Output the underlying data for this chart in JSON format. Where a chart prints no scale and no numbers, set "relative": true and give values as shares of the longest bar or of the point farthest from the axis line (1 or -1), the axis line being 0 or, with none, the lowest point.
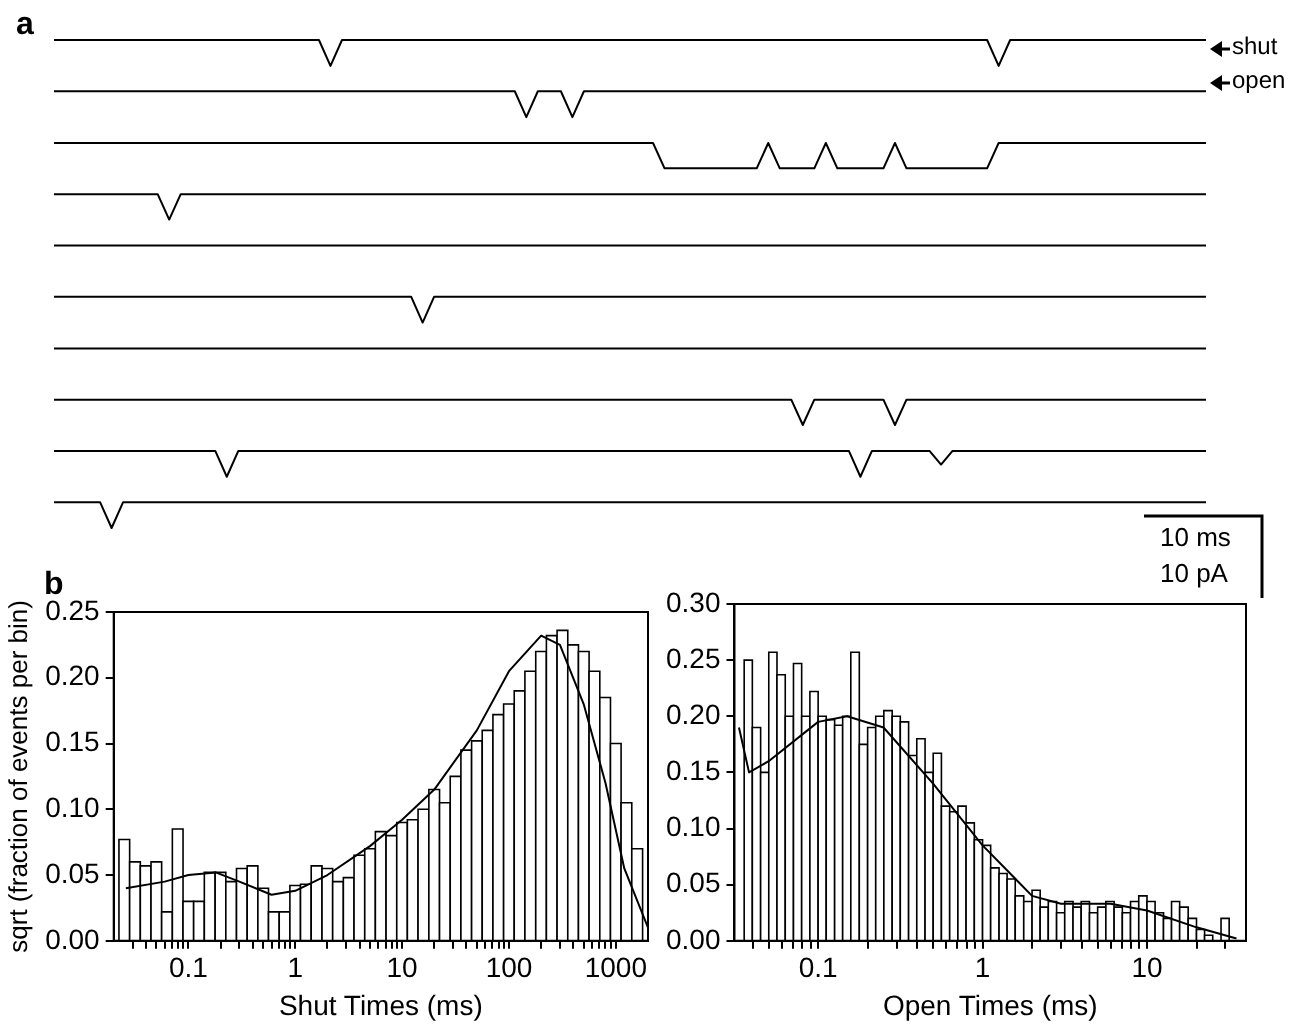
{
  "chart_data": [
    {
      "type": "line",
      "relative": true,
      "marker": "none",
      "line_style": "solid",
      "annotations": [
        "a",
        "shut",
        "open",
        "10 ms",
        "10 pA"
      ],
      "categories": [
        null,
        null,
        null,
        null,
        null,
        null,
        null,
        null,
        null,
        null,
        null,
        null,
        null,
        null,
        null,
        null,
        null,
        null,
        null,
        null,
        null,
        null,
        null,
        null,
        null,
        null,
        null,
        null,
        null,
        null,
        null,
        null,
        null,
        null,
        null,
        null,
        null,
        null,
        null,
        null,
        null,
        null,
        null,
        null,
        null,
        null,
        null,
        null,
        null,
        null,
        null,
        null,
        null,
        null,
        null,
        null,
        null,
        null,
        null,
        null,
        null,
        null,
        null,
        null,
        null,
        null,
        null,
        null,
        null,
        null,
        null,
        null,
        null,
        null,
        null,
        null,
        null,
        null,
        null,
        null,
        null,
        null,
        null,
        null,
        null,
        null,
        null,
        null,
        null,
        null,
        null,
        null,
        null,
        null,
        null,
        null,
        null,
        null,
        null,
        null,
        null
      ],
      "series": [
        {
          "color": "#000000",
          "values": [
            1,
            1,
            1,
            1,
            1,
            1,
            1,
            1,
            1,
            1,
            1,
            1,
            1,
            1,
            1,
            1,
            1,
            1,
            1,
            1,
            1,
            1,
            1,
            1,
            0.947,
            1,
            1,
            1,
            1,
            1,
            1,
            1,
            1,
            1,
            1,
            1,
            1,
            1,
            1,
            1,
            1,
            1,
            1,
            1,
            1,
            1,
            1,
            1,
            1,
            1,
            1,
            1,
            1,
            1,
            1,
            1,
            1,
            1,
            1,
            1,
            1,
            1,
            1,
            1,
            1,
            1,
            1,
            1,
            1,
            1,
            1,
            1,
            1,
            1,
            1,
            1,
            1,
            1,
            1,
            1,
            1,
            1,
            0.947,
            1,
            1,
            1,
            1,
            1,
            1,
            1,
            1,
            1,
            1,
            1,
            1,
            1,
            1,
            1,
            1,
            1,
            1
          ]
        },
        {
          "color": "#000000",
          "values": [
            0.895,
            0.895,
            0.895,
            0.895,
            0.895,
            0.895,
            0.895,
            0.895,
            0.895,
            0.895,
            0.895,
            0.895,
            0.895,
            0.895,
            0.895,
            0.895,
            0.895,
            0.895,
            0.895,
            0.895,
            0.895,
            0.895,
            0.895,
            0.895,
            0.895,
            0.895,
            0.895,
            0.895,
            0.895,
            0.895,
            0.895,
            0.895,
            0.895,
            0.895,
            0.895,
            0.895,
            0.895,
            0.895,
            0.895,
            0.895,
            0.895,
            0.842,
            0.895,
            0.895,
            0.895,
            0.842,
            0.895,
            0.895,
            0.895,
            0.895,
            0.895,
            0.895,
            0.895,
            0.895,
            0.895,
            0.895,
            0.895,
            0.895,
            0.895,
            0.895,
            0.895,
            0.895,
            0.895,
            0.895,
            0.895,
            0.895,
            0.895,
            0.895,
            0.895,
            0.895,
            0.895,
            0.895,
            0.895,
            0.895,
            0.895,
            0.895,
            0.895,
            0.895,
            0.895,
            0.895,
            0.895,
            0.895,
            0.895,
            0.895,
            0.895,
            0.895,
            0.895,
            0.895,
            0.895,
            0.895,
            0.895,
            0.895,
            0.895,
            0.895,
            0.895,
            0.895,
            0.895,
            0.895,
            0.895,
            0.895,
            0.895
          ]
        },
        {
          "color": "#000000",
          "values": [
            0.789,
            0.789,
            0.789,
            0.789,
            0.789,
            0.789,
            0.789,
            0.789,
            0.789,
            0.789,
            0.789,
            0.789,
            0.789,
            0.789,
            0.789,
            0.789,
            0.789,
            0.789,
            0.789,
            0.789,
            0.789,
            0.789,
            0.789,
            0.789,
            0.789,
            0.789,
            0.789,
            0.789,
            0.789,
            0.789,
            0.789,
            0.789,
            0.789,
            0.789,
            0.789,
            0.789,
            0.789,
            0.789,
            0.789,
            0.789,
            0.789,
            0.789,
            0.789,
            0.789,
            0.789,
            0.789,
            0.789,
            0.789,
            0.789,
            0.789,
            0.789,
            0.789,
            0.789,
            0.737,
            0.737,
            0.737,
            0.737,
            0.737,
            0.737,
            0.737,
            0.737,
            0.737,
            0.789,
            0.737,
            0.737,
            0.737,
            0.737,
            0.789,
            0.737,
            0.737,
            0.737,
            0.737,
            0.737,
            0.789,
            0.737,
            0.737,
            0.737,
            0.737,
            0.737,
            0.737,
            0.737,
            0.737,
            0.789,
            0.789,
            0.789,
            0.789,
            0.789,
            0.789,
            0.789,
            0.789,
            0.789,
            0.789,
            0.789,
            0.789,
            0.789,
            0.789,
            0.789,
            0.789,
            0.789,
            0.789,
            0.789
          ]
        },
        {
          "color": "#000000",
          "values": [
            0.684,
            0.684,
            0.684,
            0.684,
            0.684,
            0.684,
            0.684,
            0.684,
            0.684,
            0.684,
            0.632,
            0.684,
            0.684,
            0.684,
            0.684,
            0.684,
            0.684,
            0.684,
            0.684,
            0.684,
            0.684,
            0.684,
            0.684,
            0.684,
            0.684,
            0.684,
            0.684,
            0.684,
            0.684,
            0.684,
            0.684,
            0.684,
            0.684,
            0.684,
            0.684,
            0.684,
            0.684,
            0.684,
            0.684,
            0.684,
            0.684,
            0.684,
            0.684,
            0.684,
            0.684,
            0.684,
            0.684,
            0.684,
            0.684,
            0.684,
            0.684,
            0.684,
            0.684,
            0.684,
            0.684,
            0.684,
            0.684,
            0.684,
            0.684,
            0.684,
            0.684,
            0.684,
            0.684,
            0.684,
            0.684,
            0.684,
            0.684,
            0.684,
            0.684,
            0.684,
            0.684,
            0.684,
            0.684,
            0.684,
            0.684,
            0.684,
            0.684,
            0.684,
            0.684,
            0.684,
            0.684,
            0.684,
            0.684,
            0.684,
            0.684,
            0.684,
            0.684,
            0.684,
            0.684,
            0.684,
            0.684,
            0.684,
            0.684,
            0.684,
            0.684,
            0.684,
            0.684,
            0.684,
            0.684,
            0.684,
            0.684
          ]
        },
        {
          "color": "#000000",
          "values": [
            0.579,
            0.579,
            0.579,
            0.579,
            0.579,
            0.579,
            0.579,
            0.579,
            0.579,
            0.579,
            0.579,
            0.579,
            0.579,
            0.579,
            0.579,
            0.579,
            0.579,
            0.579,
            0.579,
            0.579,
            0.579,
            0.579,
            0.579,
            0.579,
            0.579,
            0.579,
            0.579,
            0.579,
            0.579,
            0.579,
            0.579,
            0.579,
            0.579,
            0.579,
            0.579,
            0.579,
            0.579,
            0.579,
            0.579,
            0.579,
            0.579,
            0.579,
            0.579,
            0.579,
            0.579,
            0.579,
            0.579,
            0.579,
            0.579,
            0.579,
            0.579,
            0.579,
            0.579,
            0.579,
            0.579,
            0.579,
            0.579,
            0.579,
            0.579,
            0.579,
            0.579,
            0.579,
            0.579,
            0.579,
            0.579,
            0.579,
            0.579,
            0.579,
            0.579,
            0.579,
            0.579,
            0.579,
            0.579,
            0.579,
            0.579,
            0.579,
            0.579,
            0.579,
            0.579,
            0.579,
            0.579,
            0.579,
            0.579,
            0.579,
            0.579,
            0.579,
            0.579,
            0.579,
            0.579,
            0.579,
            0.579,
            0.579,
            0.579,
            0.579,
            0.579,
            0.579,
            0.579,
            0.579,
            0.579,
            0.579,
            0.579
          ]
        },
        {
          "color": "#000000",
          "values": [
            0.474,
            0.474,
            0.474,
            0.474,
            0.474,
            0.474,
            0.474,
            0.474,
            0.474,
            0.474,
            0.474,
            0.474,
            0.474,
            0.474,
            0.474,
            0.474,
            0.474,
            0.474,
            0.474,
            0.474,
            0.474,
            0.474,
            0.474,
            0.474,
            0.474,
            0.474,
            0.474,
            0.474,
            0.474,
            0.474,
            0.474,
            0.474,
            0.421,
            0.474,
            0.474,
            0.474,
            0.474,
            0.474,
            0.474,
            0.474,
            0.474,
            0.474,
            0.474,
            0.474,
            0.474,
            0.474,
            0.474,
            0.474,
            0.474,
            0.474,
            0.474,
            0.474,
            0.474,
            0.474,
            0.474,
            0.474,
            0.474,
            0.474,
            0.474,
            0.474,
            0.474,
            0.474,
            0.474,
            0.474,
            0.474,
            0.474,
            0.474,
            0.474,
            0.474,
            0.474,
            0.474,
            0.474,
            0.474,
            0.474,
            0.474,
            0.474,
            0.474,
            0.474,
            0.474,
            0.474,
            0.474,
            0.474,
            0.474,
            0.474,
            0.474,
            0.474,
            0.474,
            0.474,
            0.474,
            0.474,
            0.474,
            0.474,
            0.474,
            0.474,
            0.474,
            0.474,
            0.474,
            0.474,
            0.474,
            0.474,
            0.474
          ]
        },
        {
          "color": "#000000",
          "values": [
            0.368,
            0.368,
            0.368,
            0.368,
            0.368,
            0.368,
            0.368,
            0.368,
            0.368,
            0.368,
            0.368,
            0.368,
            0.368,
            0.368,
            0.368,
            0.368,
            0.368,
            0.368,
            0.368,
            0.368,
            0.368,
            0.368,
            0.368,
            0.368,
            0.368,
            0.368,
            0.368,
            0.368,
            0.368,
            0.368,
            0.368,
            0.368,
            0.368,
            0.368,
            0.368,
            0.368,
            0.368,
            0.368,
            0.368,
            0.368,
            0.368,
            0.368,
            0.368,
            0.368,
            0.368,
            0.368,
            0.368,
            0.368,
            0.368,
            0.368,
            0.368,
            0.368,
            0.368,
            0.368,
            0.368,
            0.368,
            0.368,
            0.368,
            0.368,
            0.368,
            0.368,
            0.368,
            0.368,
            0.368,
            0.368,
            0.368,
            0.368,
            0.368,
            0.368,
            0.368,
            0.368,
            0.368,
            0.368,
            0.368,
            0.368,
            0.368,
            0.368,
            0.368,
            0.368,
            0.368,
            0.368,
            0.368,
            0.368,
            0.368,
            0.368,
            0.368,
            0.368,
            0.368,
            0.368,
            0.368,
            0.368,
            0.368,
            0.368,
            0.368,
            0.368,
            0.368,
            0.368,
            0.368,
            0.368,
            0.368,
            0.368
          ]
        },
        {
          "color": "#000000",
          "values": [
            0.263,
            0.263,
            0.263,
            0.263,
            0.263,
            0.263,
            0.263,
            0.263,
            0.263,
            0.263,
            0.263,
            0.263,
            0.263,
            0.263,
            0.263,
            0.263,
            0.263,
            0.263,
            0.263,
            0.263,
            0.263,
            0.263,
            0.263,
            0.263,
            0.263,
            0.263,
            0.263,
            0.263,
            0.263,
            0.263,
            0.263,
            0.263,
            0.263,
            0.263,
            0.263,
            0.263,
            0.263,
            0.263,
            0.263,
            0.263,
            0.263,
            0.263,
            0.263,
            0.263,
            0.263,
            0.263,
            0.263,
            0.263,
            0.263,
            0.263,
            0.263,
            0.263,
            0.263,
            0.263,
            0.263,
            0.263,
            0.263,
            0.263,
            0.263,
            0.263,
            0.263,
            0.263,
            0.263,
            0.263,
            0.263,
            0.211,
            0.263,
            0.263,
            0.263,
            0.263,
            0.263,
            0.263,
            0.263,
            0.211,
            0.263,
            0.263,
            0.263,
            0.263,
            0.263,
            0.263,
            0.263,
            0.263,
            0.263,
            0.263,
            0.263,
            0.263,
            0.263,
            0.263,
            0.263,
            0.263,
            0.263,
            0.263,
            0.263,
            0.263,
            0.263,
            0.263,
            0.263,
            0.263,
            0.263,
            0.263,
            0.263
          ]
        },
        {
          "color": "#000000",
          "values": [
            0.158,
            0.158,
            0.158,
            0.158,
            0.158,
            0.158,
            0.158,
            0.158,
            0.158,
            0.158,
            0.158,
            0.158,
            0.158,
            0.158,
            0.158,
            0.105,
            0.158,
            0.158,
            0.158,
            0.158,
            0.158,
            0.158,
            0.158,
            0.158,
            0.158,
            0.158,
            0.158,
            0.158,
            0.158,
            0.158,
            0.158,
            0.158,
            0.158,
            0.158,
            0.158,
            0.158,
            0.158,
            0.158,
            0.158,
            0.158,
            0.158,
            0.158,
            0.158,
            0.158,
            0.158,
            0.158,
            0.158,
            0.158,
            0.158,
            0.158,
            0.158,
            0.158,
            0.158,
            0.158,
            0.158,
            0.158,
            0.158,
            0.158,
            0.158,
            0.158,
            0.158,
            0.158,
            0.158,
            0.158,
            0.158,
            0.158,
            0.158,
            0.158,
            0.158,
            0.158,
            0.105,
            0.158,
            0.158,
            0.158,
            0.158,
            0.158,
            0.158,
            0.13,
            0.158,
            0.158,
            0.158,
            0.158,
            0.158,
            0.158,
            0.158,
            0.158,
            0.158,
            0.158,
            0.158,
            0.158,
            0.158,
            0.158,
            0.158,
            0.158,
            0.158,
            0.158,
            0.158,
            0.158,
            0.158,
            0.158,
            0.158
          ]
        },
        {
          "color": "#000000",
          "values": [
            0.053,
            0.053,
            0.053,
            0.053,
            0.053,
            0,
            0.053,
            0.053,
            0.053,
            0.053,
            0.053,
            0.053,
            0.053,
            0.053,
            0.053,
            0.053,
            0.053,
            0.053,
            0.053,
            0.053,
            0.053,
            0.053,
            0.053,
            0.053,
            0.053,
            0.053,
            0.053,
            0.053,
            0.053,
            0.053,
            0.053,
            0.053,
            0.053,
            0.053,
            0.053,
            0.053,
            0.053,
            0.053,
            0.053,
            0.053,
            0.053,
            0.053,
            0.053,
            0.053,
            0.053,
            0.053,
            0.053,
            0.053,
            0.053,
            0.053,
            0.053,
            0.053,
            0.053,
            0.053,
            0.053,
            0.053,
            0.053,
            0.053,
            0.053,
            0.053,
            0.053,
            0.053,
            0.053,
            0.053,
            0.053,
            0.053,
            0.053,
            0.053,
            0.053,
            0.053,
            0.053,
            0.053,
            0.053,
            0.053,
            0.053,
            0.053,
            0.053,
            0.053,
            0.053,
            0.053,
            0.053,
            0.053,
            0.053,
            0.053,
            0.053,
            0.053,
            0.053,
            0.053,
            0.053,
            0.053,
            0.053,
            0.053,
            0.053,
            0.053,
            0.053,
            0.053,
            0.053,
            0.053,
            0.053,
            0.053,
            0.053
          ]
        }
      ]
    },
    {
      "type": "histogram",
      "log": "x",
      "grid": false,
      "marker": "none",
      "line_style": "solid",
      "annotations": [
        "b"
      ],
      "xlabel": "Shut Times (ms)",
      "ylabel": "sqrt (fraction of events per bin)",
      "xlim": [
        0.02,
        2000
      ],
      "xticks": [
        {
          "value": 0.03,
          "label": null
        },
        {
          "value": 0.04,
          "label": null
        },
        {
          "value": 0.05,
          "label": null
        },
        {
          "value": 0.06,
          "label": null
        },
        {
          "value": 0.07,
          "label": null
        },
        {
          "value": 0.08,
          "label": null
        },
        {
          "value": 0.09,
          "label": null
        },
        0.1,
        {
          "value": 0.2,
          "label": null
        },
        {
          "value": 0.3,
          "label": null
        },
        {
          "value": 0.4,
          "label": null
        },
        {
          "value": 0.5,
          "label": null
        },
        {
          "value": 0.6,
          "label": null
        },
        {
          "value": 0.7,
          "label": null
        },
        {
          "value": 0.8,
          "label": null
        },
        {
          "value": 0.9,
          "label": null
        },
        1,
        {
          "value": 2,
          "label": null
        },
        {
          "value": 3,
          "label": null
        },
        {
          "value": 4,
          "label": null
        },
        {
          "value": 5,
          "label": null
        },
        {
          "value": 6,
          "label": null
        },
        {
          "value": 7,
          "label": null
        },
        {
          "value": 8,
          "label": null
        },
        {
          "value": 9,
          "label": null
        },
        10,
        {
          "value": 20,
          "label": null
        },
        {
          "value": 30,
          "label": null
        },
        {
          "value": 40,
          "label": null
        },
        {
          "value": 50,
          "label": null
        },
        {
          "value": 60,
          "label": null
        },
        {
          "value": 70,
          "label": null
        },
        {
          "value": 80,
          "label": null
        },
        {
          "value": 90,
          "label": null
        },
        100,
        {
          "value": 200,
          "label": null
        },
        {
          "value": 300,
          "label": null
        },
        {
          "value": 400,
          "label": null
        },
        {
          "value": 500,
          "label": null
        },
        {
          "value": 600,
          "label": null
        },
        {
          "value": 700,
          "label": null
        },
        {
          "value": 800,
          "label": null
        },
        {
          "value": 900,
          "label": null
        },
        1000
      ],
      "ylim": [
        0,
        0.25
      ],
      "yticks": [
        {
          "value": 0,
          "label": "0.00"
        },
        {
          "value": 0.05,
          "label": "0.05"
        },
        {
          "value": 0.1,
          "label": "0.10"
        },
        {
          "value": 0.15,
          "label": "0.15"
        },
        {
          "value": 0.2,
          "label": "0.20"
        },
        {
          "value": 0.25,
          "label": "0.25"
        }
      ],
      "series": [
        {
          "type": "histogram",
          "color": "#ffffff",
          "bins": [
            0.0224,
            0.0282,
            0.0355,
            0.0447,
            0.0562,
            0.0708,
            0.0891,
            0.112,
            0.141,
            0.178,
            0.224,
            0.282,
            0.355,
            0.447,
            0.562,
            0.708,
            0.891,
            1.12,
            1.41,
            1.78,
            2.24,
            2.82,
            3.55,
            4.47,
            5.62,
            7.08,
            8.91,
            11.2,
            14.1,
            17.8,
            22.4,
            28.2,
            35.5,
            44.7,
            56.2,
            70.8,
            89.1,
            112,
            141,
            178,
            224,
            282,
            355,
            447,
            562,
            708,
            891,
            1120,
            1410,
            1780
          ],
          "values": [
            0.077,
            0.06,
            0.057,
            0.06,
            0.022,
            0.085,
            0.03,
            0.03,
            0.052,
            0.052,
            0.045,
            0.055,
            0.057,
            0.04,
            0.022,
            0.022,
            0.042,
            0.043,
            0.057,
            0.055,
            0.045,
            0.048,
            0.065,
            0.07,
            0.083,
            0.08,
            0.09,
            0.092,
            0.1,
            0.115,
            0.105,
            0.125,
            0.145,
            0.152,
            0.16,
            0.172,
            0.18,
            0.19,
            0.205,
            0.22,
            0.232,
            0.236,
            0.225,
            0.22,
            0.205,
            0.185,
            0.15,
            0.105,
            0.07
          ]
        },
        {
          "type": "line",
          "color": "#000000",
          "x": [
            0.026,
            0.06,
            0.1,
            0.18,
            0.3,
            0.6,
            1,
            2,
            5,
            10,
            20,
            50,
            100,
            200,
            300,
            500,
            800,
            1200,
            2000
          ],
          "values": [
            0.04,
            0.045,
            0.05,
            0.052,
            0.045,
            0.035,
            0.038,
            0.05,
            0.072,
            0.092,
            0.115,
            0.16,
            0.205,
            0.232,
            0.225,
            0.18,
            0.12,
            0.055,
            0.01
          ]
        }
      ]
    },
    {
      "type": "histogram",
      "log": "x",
      "grid": false,
      "marker": "none",
      "line_style": "solid",
      "xlabel": "Open Times (ms)",
      "xlim": [
        0.031,
        40
      ],
      "xticks": [
        {
          "value": 0.04,
          "label": null
        },
        {
          "value": 0.05,
          "label": null
        },
        {
          "value": 0.06,
          "label": null
        },
        {
          "value": 0.07,
          "label": null
        },
        {
          "value": 0.08,
          "label": null
        },
        {
          "value": 0.09,
          "label": null
        },
        0.1,
        {
          "value": 0.2,
          "label": null
        },
        {
          "value": 0.3,
          "label": null
        },
        {
          "value": 0.4,
          "label": null
        },
        {
          "value": 0.5,
          "label": null
        },
        {
          "value": 0.6,
          "label": null
        },
        {
          "value": 0.7,
          "label": null
        },
        {
          "value": 0.8,
          "label": null
        },
        {
          "value": 0.9,
          "label": null
        },
        1,
        {
          "value": 2,
          "label": null
        },
        {
          "value": 3,
          "label": null
        },
        {
          "value": 4,
          "label": null
        },
        {
          "value": 5,
          "label": null
        },
        {
          "value": 6,
          "label": null
        },
        {
          "value": 7,
          "label": null
        },
        {
          "value": 8,
          "label": null
        },
        {
          "value": 9,
          "label": null
        },
        10,
        {
          "value": 20,
          "label": null
        },
        {
          "value": 30,
          "label": null
        }
      ],
      "ylim": [
        0,
        0.3
      ],
      "yticks": [
        {
          "value": 0,
          "label": "0.00"
        },
        {
          "value": 0.05,
          "label": "0.05"
        },
        {
          "value": 0.1,
          "label": "0.10"
        },
        {
          "value": 0.15,
          "label": "0.15"
        },
        {
          "value": 0.2,
          "label": "0.20"
        },
        {
          "value": 0.25,
          "label": "0.25"
        },
        {
          "value": 0.3,
          "label": "0.30"
        }
      ],
      "series": [
        {
          "type": "histogram",
          "color": "#ffffff",
          "bins": [
            0.0355,
            0.0398,
            0.0447,
            0.0501,
            0.0562,
            0.0631,
            0.0708,
            0.0794,
            0.0891,
            0.1,
            0.112,
            0.126,
            0.141,
            0.158,
            0.178,
            0.2,
            0.224,
            0.251,
            0.282,
            0.316,
            0.355,
            0.398,
            0.447,
            0.501,
            0.562,
            0.631,
            0.708,
            0.794,
            0.891,
            1,
            1.12,
            1.26,
            1.41,
            1.58,
            1.78,
            2,
            2.24,
            2.51,
            2.82,
            3.16,
            3.55,
            3.98,
            4.47,
            5.01,
            5.62,
            6.31,
            7.08,
            7.94,
            8.91,
            10,
            11.2,
            12.6,
            14.1,
            15.8,
            17.8,
            20,
            22.4,
            25.1,
            28.2,
            31.6,
            35.5
          ],
          "values": [
            0.25,
            0.19,
            0.15,
            0.257,
            0.237,
            0.2,
            0.247,
            0.2,
            0.222,
            0.2,
            0.197,
            0.192,
            0.2,
            0.257,
            0.175,
            0.19,
            0.2,
            0.205,
            0.2,
            0.195,
            0.165,
            0.18,
            0.15,
            0.167,
            0.12,
            0.115,
            0.12,
            0.105,
            0.09,
            0.085,
            0.065,
            0.06,
            0.055,
            0.04,
            0.035,
            0.045,
            0.03,
            0.035,
            0.025,
            0.035,
            0.03,
            0.035,
            0.025,
            0.03,
            0.035,
            0.03,
            0.025,
            0.035,
            0.04,
            0.035,
            0.025,
            0.02,
            0.035,
            0.03,
            0.02,
            0.01,
            0.005,
            0,
            0.02,
            0
          ]
        },
        {
          "type": "line",
          "color": "#000000",
          "x": [
            0.033,
            0.038,
            0.05,
            0.1,
            0.15,
            0.25,
            0.5,
            1,
            2,
            3,
            6,
            10,
            20,
            35
          ],
          "values": [
            0.19,
            0.15,
            0.16,
            0.195,
            0.2,
            0.19,
            0.14,
            0.085,
            0.04,
            0.033,
            0.033,
            0.027,
            0.012,
            0.002
          ]
        }
      ]
    }
  ]
}
